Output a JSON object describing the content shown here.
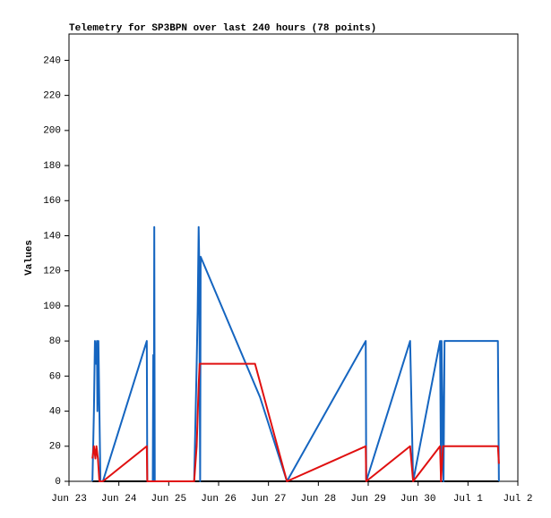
{
  "chart_data": {
    "type": "line",
    "title": "Telemetry for SP3BPN over last 240 hours (78 points)",
    "y_label": "Values",
    "xlim": [
      0,
      9
    ],
    "xticks": [
      {
        "value": 0,
        "label": "Jun 23"
      },
      {
        "value": 1,
        "label": "Jun 24"
      },
      {
        "value": 2,
        "label": "Jun 25"
      },
      {
        "value": 3,
        "label": "Jun 26"
      },
      {
        "value": 4,
        "label": "Jun 27"
      },
      {
        "value": 5,
        "label": "Jun 28"
      },
      {
        "value": 6,
        "label": "Jun 29"
      },
      {
        "value": 7,
        "label": "Jun 30"
      },
      {
        "value": 8,
        "label": "Jul 1"
      },
      {
        "value": 9,
        "label": "Jul 2"
      }
    ],
    "ylim": [
      0,
      255
    ],
    "yticks": [
      0,
      20,
      40,
      60,
      80,
      100,
      120,
      140,
      160,
      180,
      200,
      220,
      240
    ],
    "series": [
      {
        "color": "#000000",
        "x": [
          0.47,
          8.62
        ],
        "values": [
          0,
          0
        ]
      },
      {
        "color": "#1565c0",
        "x": [
          0.47,
          0.5,
          0.52,
          0.54,
          0.56,
          0.57,
          0.59,
          0.61,
          0.63,
          0.68,
          1.56,
          1.57,
          1.68,
          1.69,
          1.7,
          1.71,
          1.72,
          2.51,
          2.56,
          2.58,
          2.6,
          2.61,
          2.63,
          2.64,
          3.83,
          4.37,
          5.95,
          5.96,
          6.84,
          6.87,
          6.9,
          7.44,
          7.46,
          7.47,
          7.51,
          7.53,
          8.6,
          8.61,
          8.62
        ],
        "values": [
          0,
          40,
          80,
          67,
          80,
          40,
          80,
          40,
          0,
          0,
          80,
          0,
          0,
          72,
          0,
          145,
          0,
          0,
          67,
          97,
          145,
          128,
          0,
          128,
          48,
          0,
          80,
          0,
          80,
          40,
          0,
          80,
          0,
          80,
          0,
          80,
          80,
          40,
          0
        ]
      },
      {
        "color": "#e01010",
        "x": [
          0.47,
          0.5,
          0.53,
          0.55,
          0.58,
          0.61,
          0.68,
          1.56,
          1.57,
          2.51,
          2.56,
          2.6,
          2.62,
          3.73,
          4.37,
          5.95,
          5.96,
          6.84,
          6.9,
          7.44,
          7.46,
          7.5,
          8.6,
          8.62
        ],
        "values": [
          13,
          20,
          13,
          20,
          13,
          0,
          0,
          20,
          0,
          0,
          20,
          55,
          67,
          67,
          0,
          20,
          0,
          20,
          0,
          20,
          0,
          20,
          20,
          10
        ]
      }
    ]
  }
}
